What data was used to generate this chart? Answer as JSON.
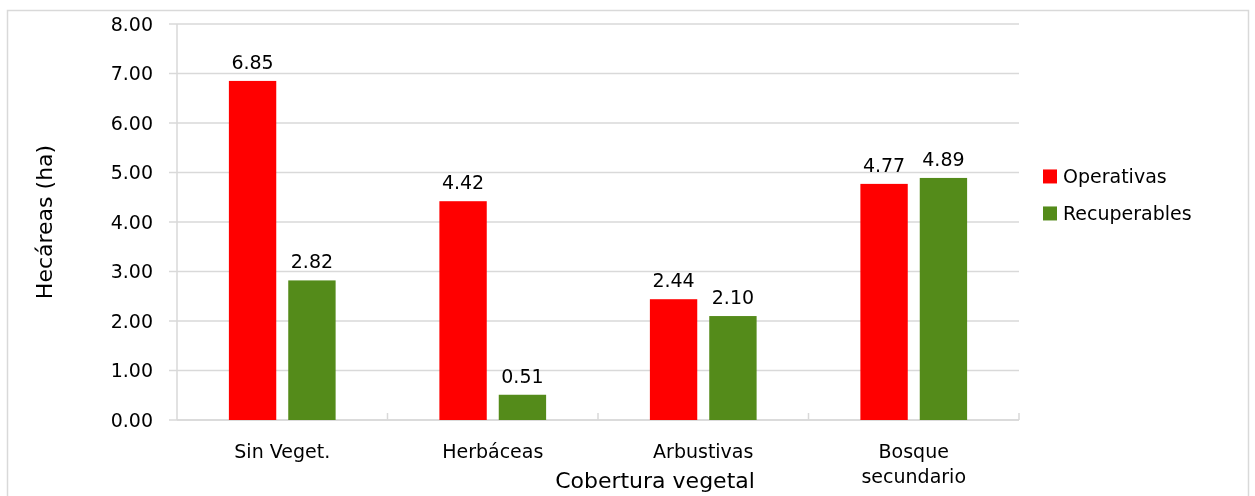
{
  "chart_data": {
    "type": "bar",
    "xlabel": "Cobertura vegetal",
    "ylabel": "Hecáreas (ha)",
    "categories": [
      "Sin Veget.",
      "Herbáceas",
      "Arbustivas",
      "Bosque secundario"
    ],
    "series": [
      {
        "name": "Operativas",
        "color": "#ff0000",
        "values": [
          6.85,
          4.42,
          2.44,
          4.77
        ],
        "value_labels": [
          "6.85",
          "4.42",
          "2.44",
          "4.77"
        ]
      },
      {
        "name": "Recuperables",
        "color": "#548b1a",
        "values": [
          2.82,
          0.51,
          2.1,
          4.89
        ],
        "value_labels": [
          "2.82",
          "0.51",
          "2.10",
          "4.89"
        ]
      }
    ],
    "ylim": [
      0,
      8
    ],
    "yticks": [
      {
        "value": 0,
        "label": "0.00"
      },
      {
        "value": 1,
        "label": "1.00"
      },
      {
        "value": 2,
        "label": "2.00"
      },
      {
        "value": 3,
        "label": "3.00"
      },
      {
        "value": 4,
        "label": "4.00"
      },
      {
        "value": 5,
        "label": "5.00"
      },
      {
        "value": 6,
        "label": "6.00"
      },
      {
        "value": 7,
        "label": "7.00"
      },
      {
        "value": 8,
        "label": "8.00"
      }
    ],
    "grid": "y",
    "legend": "right"
  }
}
